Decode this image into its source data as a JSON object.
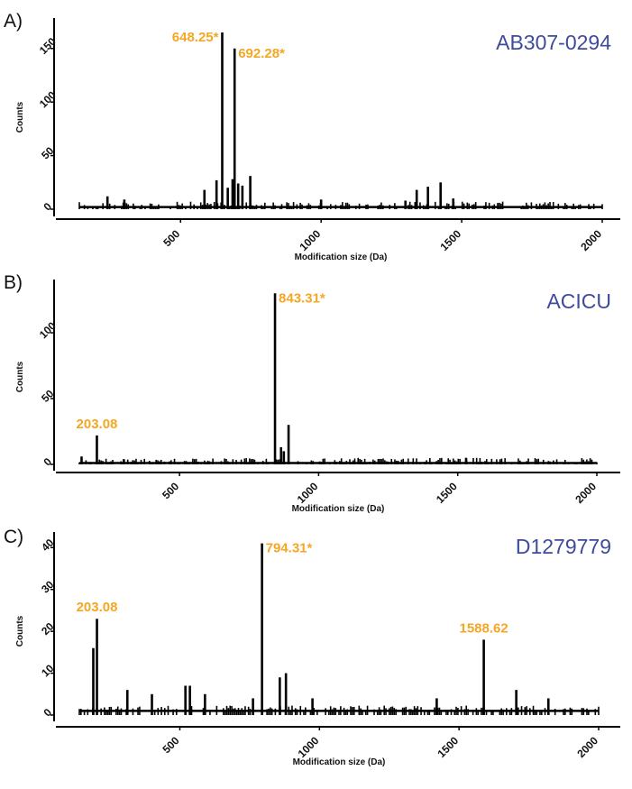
{
  "colors": {
    "annotation": "#F5A623",
    "strain": "#3F4B9A",
    "bars": "#000000"
  },
  "chart_data": [
    {
      "type": "bar",
      "panel": "A)",
      "strain": "AB307-0294",
      "xlabel": "Modification size (Da)",
      "ylabel": "Counts",
      "xlim": [
        140,
        2000
      ],
      "ylim": [
        0,
        170
      ],
      "xticks": [
        500,
        1000,
        1500,
        2000
      ],
      "yticks": [
        0,
        50,
        100,
        150
      ],
      "baseline": 2,
      "peaks": [
        {
          "x": 648.25,
          "y": 165
        },
        {
          "x": 692.28,
          "y": 150
        },
        {
          "x": 1425,
          "y": 25
        },
        {
          "x": 1380,
          "y": 21
        },
        {
          "x": 1340,
          "y": 18
        },
        {
          "x": 748,
          "y": 31
        },
        {
          "x": 720,
          "y": 22
        },
        {
          "x": 628,
          "y": 27
        },
        {
          "x": 668,
          "y": 20
        },
        {
          "x": 685,
          "y": 28
        },
        {
          "x": 705,
          "y": 24
        },
        {
          "x": 585,
          "y": 18
        },
        {
          "x": 240,
          "y": 12
        },
        {
          "x": 300,
          "y": 9
        },
        {
          "x": 1470,
          "y": 10
        },
        {
          "x": 1300,
          "y": 8
        },
        {
          "x": 1000,
          "y": 9
        }
      ],
      "annotations": [
        {
          "text": "648.25*",
          "x": 648.25,
          "y": 165,
          "side": "left"
        },
        {
          "text": "692.28*",
          "x": 692.28,
          "y": 150,
          "side": "right"
        }
      ]
    },
    {
      "type": "bar",
      "panel": "B)",
      "strain": "ACICU",
      "xlabel": "Modification size (Da)",
      "ylabel": "Counts",
      "xlim": [
        140,
        2000
      ],
      "ylim": [
        0,
        135
      ],
      "xticks": [
        500,
        1000,
        1500,
        2000
      ],
      "yticks": [
        0,
        50,
        100
      ],
      "baseline": 1,
      "peaks": [
        {
          "x": 843.31,
          "y": 130
        },
        {
          "x": 203.08,
          "y": 22
        },
        {
          "x": 892,
          "y": 30
        },
        {
          "x": 865,
          "y": 13
        },
        {
          "x": 875,
          "y": 10
        },
        {
          "x": 1530,
          "y": 5
        },
        {
          "x": 148,
          "y": 6
        },
        {
          "x": 300,
          "y": 4
        }
      ],
      "annotations": [
        {
          "text": "843.31*",
          "x": 843.31,
          "y": 130,
          "side": "right"
        },
        {
          "text": "203.08",
          "x": 203.08,
          "y": 22,
          "side": "center"
        }
      ]
    },
    {
      "type": "bar",
      "panel": "C)",
      "strain": "D1279779",
      "xlabel": "Modification size (Da)",
      "ylabel": "Counts",
      "xlim": [
        140,
        2000
      ],
      "ylim": [
        0,
        42
      ],
      "xticks": [
        500,
        1000,
        1500,
        2000
      ],
      "yticks": [
        0,
        10,
        20,
        30,
        40
      ],
      "baseline": 1,
      "peaks": [
        {
          "x": 794.31,
          "y": 41
        },
        {
          "x": 203.08,
          "y": 23
        },
        {
          "x": 1588.62,
          "y": 18
        },
        {
          "x": 190,
          "y": 16
        },
        {
          "x": 880,
          "y": 10
        },
        {
          "x": 858,
          "y": 9
        },
        {
          "x": 520,
          "y": 7
        },
        {
          "x": 536,
          "y": 7
        },
        {
          "x": 1705,
          "y": 6
        },
        {
          "x": 312,
          "y": 6
        },
        {
          "x": 590,
          "y": 5
        },
        {
          "x": 400,
          "y": 5
        },
        {
          "x": 762,
          "y": 4
        },
        {
          "x": 1820,
          "y": 4
        },
        {
          "x": 1420,
          "y": 4
        },
        {
          "x": 975,
          "y": 4
        }
      ],
      "annotations": [
        {
          "text": "794.31*",
          "x": 794.31,
          "y": 41,
          "side": "right"
        },
        {
          "text": "203.08",
          "x": 203.08,
          "y": 23,
          "side": "center"
        },
        {
          "text": "1588.62",
          "x": 1588.62,
          "y": 18,
          "side": "center"
        }
      ]
    }
  ]
}
